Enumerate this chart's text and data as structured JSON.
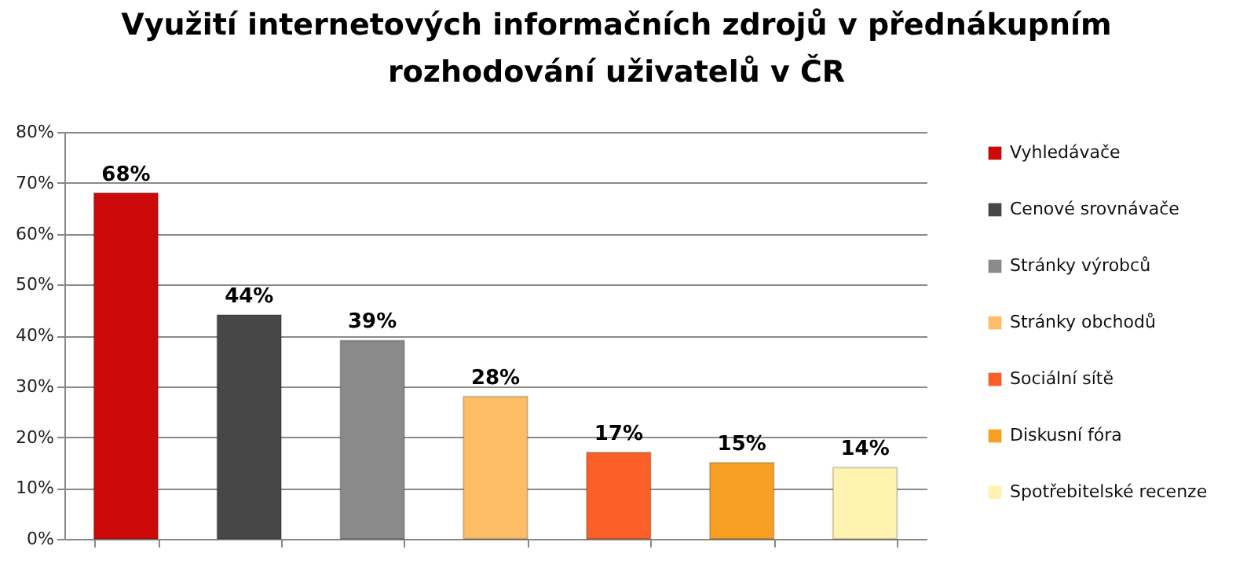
{
  "chart_data": {
    "type": "bar",
    "title": [
      "Využití internetových informačních zdrojů v přednákupním",
      "rozhodování uživatelů v ČR"
    ],
    "categories": [
      null,
      null,
      null,
      null,
      null,
      null,
      null
    ],
    "series": [
      {
        "name": "Vyhledávače",
        "color": "#cc0a0a",
        "values": [
          68,
          null,
          null,
          null,
          null,
          null,
          null
        ],
        "value_labels": [
          "68%",
          null,
          null,
          null,
          null,
          null,
          null
        ]
      },
      {
        "name": "Cenové srovnávače",
        "color": "#474747",
        "values": [
          null,
          44,
          null,
          null,
          null,
          null,
          null
        ],
        "value_labels": [
          null,
          "44%",
          null,
          null,
          null,
          null,
          null
        ]
      },
      {
        "name": "Stránky výrobců",
        "color": "#8a8a8a",
        "values": [
          null,
          null,
          39,
          null,
          null,
          null,
          null
        ],
        "value_labels": [
          null,
          null,
          "39%",
          null,
          null,
          null,
          null
        ]
      },
      {
        "name": "Stránky obchodů",
        "color": "#fdbd67",
        "values": [
          null,
          null,
          null,
          28,
          null,
          null,
          null
        ],
        "value_labels": [
          null,
          null,
          null,
          "28%",
          null,
          null,
          null
        ]
      },
      {
        "name": "Sociální sítě",
        "color": "#fa5f28",
        "values": [
          null,
          null,
          null,
          null,
          17,
          null,
          null
        ],
        "value_labels": [
          null,
          null,
          null,
          null,
          "17%",
          null,
          null
        ]
      },
      {
        "name": "Diskusní fóra",
        "color": "#f79f22",
        "values": [
          null,
          null,
          null,
          null,
          null,
          15,
          null
        ],
        "value_labels": [
          null,
          null,
          null,
          null,
          null,
          "15%",
          null
        ]
      },
      {
        "name": "Spotřebitelské recenze",
        "color": "#fff3b0",
        "values": [
          null,
          null,
          null,
          null,
          null,
          null,
          14
        ],
        "value_labels": [
          null,
          null,
          null,
          null,
          null,
          null,
          "14%"
        ]
      }
    ],
    "ylim": [
      0,
      80
    ],
    "yticks": [
      {
        "value": 0,
        "label": "0%"
      },
      {
        "value": 10,
        "label": "10%"
      },
      {
        "value": 20,
        "label": "20%"
      },
      {
        "value": 30,
        "label": "30%"
      },
      {
        "value": 40,
        "label": "40%"
      },
      {
        "value": 50,
        "label": "50%"
      },
      {
        "value": 60,
        "label": "60%"
      },
      {
        "value": 70,
        "label": "70%"
      },
      {
        "value": 80,
        "label": "80%"
      }
    ],
    "grid": "y",
    "legend": "right",
    "tick_labels": "y"
  }
}
